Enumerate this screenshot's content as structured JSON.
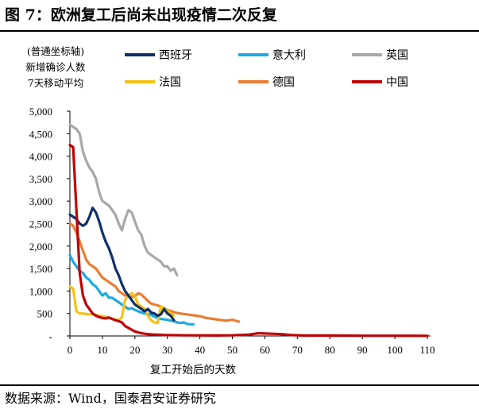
{
  "title": "图 7：欧洲复工后尚未出现疫情二次反复",
  "source": "数据来源：Wind，国泰君安证券研究",
  "chart_data": {
    "type": "line",
    "title": "图 7：欧洲复工后尚未出现疫情二次反复",
    "ylabel_lines": [
      "(普通坐标轴)",
      "新增确诊人数",
      "7天移动平均"
    ],
    "xlabel": "复工开始后的天数",
    "xlim": [
      0,
      110
    ],
    "ylim": [
      0,
      5000
    ],
    "x_ticks": [
      0,
      10,
      20,
      30,
      40,
      50,
      60,
      70,
      80,
      90,
      100,
      110
    ],
    "y_ticks": [
      {
        "value": 5000,
        "label": "5,000"
      },
      {
        "value": 4500,
        "label": "4,500"
      },
      {
        "value": 4000,
        "label": "4,000"
      },
      {
        "value": 3500,
        "label": "3,500"
      },
      {
        "value": 3000,
        "label": "3,000"
      },
      {
        "value": 2500,
        "label": "2,500"
      },
      {
        "value": 2000,
        "label": "2,000"
      },
      {
        "value": 1500,
        "label": "1,500"
      },
      {
        "value": 1000,
        "label": "1,000"
      },
      {
        "value": 500,
        "label": "500"
      },
      {
        "value": 0,
        "label": "-"
      }
    ],
    "legend_position": "top",
    "series": [
      {
        "name": "西班牙",
        "color": "#0f2f6b",
        "points": [
          [
            0,
            2700
          ],
          [
            1,
            2650
          ],
          [
            2,
            2600
          ],
          [
            3,
            2500
          ],
          [
            4,
            2450
          ],
          [
            5,
            2500
          ],
          [
            6,
            2650
          ],
          [
            7,
            2850
          ],
          [
            8,
            2750
          ],
          [
            9,
            2550
          ],
          [
            10,
            2300
          ],
          [
            11,
            2100
          ],
          [
            12,
            1950
          ],
          [
            13,
            1750
          ],
          [
            14,
            1500
          ],
          [
            15,
            1350
          ],
          [
            16,
            1150
          ],
          [
            17,
            1000
          ],
          [
            18,
            900
          ],
          [
            19,
            800
          ],
          [
            20,
            700
          ],
          [
            21,
            650
          ],
          [
            22,
            600
          ],
          [
            23,
            550
          ],
          [
            24,
            600
          ],
          [
            25,
            520
          ],
          [
            26,
            500
          ],
          [
            27,
            450
          ],
          [
            28,
            480
          ],
          [
            29,
            600
          ],
          [
            30,
            500
          ],
          [
            31,
            450
          ],
          [
            32,
            350
          ]
        ]
      },
      {
        "name": "意大利",
        "color": "#1ea9e1",
        "points": [
          [
            0,
            1800
          ],
          [
            1,
            1650
          ],
          [
            2,
            1550
          ],
          [
            3,
            1450
          ],
          [
            4,
            1400
          ],
          [
            5,
            1300
          ],
          [
            6,
            1250
          ],
          [
            7,
            1150
          ],
          [
            8,
            1100
          ],
          [
            9,
            1000
          ],
          [
            10,
            900
          ],
          [
            11,
            950
          ],
          [
            12,
            850
          ],
          [
            13,
            850
          ],
          [
            14,
            800
          ],
          [
            15,
            750
          ],
          [
            16,
            700
          ],
          [
            17,
            650
          ],
          [
            18,
            600
          ],
          [
            19,
            620
          ],
          [
            20,
            580
          ],
          [
            21,
            550
          ],
          [
            22,
            520
          ],
          [
            23,
            500
          ],
          [
            24,
            490
          ],
          [
            25,
            470
          ],
          [
            26,
            430
          ],
          [
            27,
            400
          ],
          [
            28,
            380
          ],
          [
            29,
            370
          ],
          [
            30,
            360
          ],
          [
            31,
            340
          ],
          [
            32,
            330
          ],
          [
            33,
            300
          ],
          [
            34,
            290
          ],
          [
            35,
            300
          ],
          [
            36,
            270
          ],
          [
            37,
            260
          ],
          [
            38,
            260
          ]
        ]
      },
      {
        "name": "英国",
        "color": "#a8a8a8",
        "points": [
          [
            0,
            4700
          ],
          [
            1,
            4650
          ],
          [
            2,
            4600
          ],
          [
            3,
            4500
          ],
          [
            4,
            4100
          ],
          [
            5,
            3900
          ],
          [
            6,
            3750
          ],
          [
            7,
            3650
          ],
          [
            8,
            3500
          ],
          [
            9,
            3200
          ],
          [
            10,
            3000
          ],
          [
            11,
            2950
          ],
          [
            12,
            2900
          ],
          [
            13,
            2800
          ],
          [
            14,
            2700
          ],
          [
            15,
            2500
          ],
          [
            16,
            2350
          ],
          [
            17,
            2600
          ],
          [
            18,
            2800
          ],
          [
            19,
            2750
          ],
          [
            20,
            2550
          ],
          [
            21,
            2350
          ],
          [
            22,
            2250
          ],
          [
            23,
            2000
          ],
          [
            24,
            1850
          ],
          [
            25,
            1800
          ],
          [
            26,
            1750
          ],
          [
            27,
            1700
          ],
          [
            28,
            1650
          ],
          [
            29,
            1550
          ],
          [
            30,
            1550
          ],
          [
            31,
            1450
          ],
          [
            32,
            1500
          ],
          [
            33,
            1350
          ]
        ]
      },
      {
        "name": "法国",
        "color": "#f5c211",
        "points": [
          [
            0,
            1100
          ],
          [
            1,
            1050
          ],
          [
            2,
            550
          ],
          [
            3,
            500
          ],
          [
            4,
            500
          ],
          [
            5,
            490
          ],
          [
            6,
            480
          ],
          [
            7,
            480
          ],
          [
            8,
            470
          ],
          [
            9,
            450
          ],
          [
            10,
            440
          ],
          [
            11,
            430
          ],
          [
            12,
            400
          ],
          [
            13,
            380
          ],
          [
            14,
            360
          ],
          [
            15,
            350
          ],
          [
            16,
            420
          ],
          [
            17,
            800
          ],
          [
            18,
            900
          ],
          [
            19,
            950
          ],
          [
            20,
            880
          ],
          [
            21,
            700
          ],
          [
            22,
            650
          ],
          [
            23,
            600
          ],
          [
            24,
            450
          ],
          [
            25,
            350
          ],
          [
            26,
            300
          ],
          [
            27,
            290
          ],
          [
            28,
            650
          ],
          [
            29,
            600
          ],
          [
            30,
            580
          ],
          [
            31,
            500
          ],
          [
            32,
            450
          ]
        ]
      },
      {
        "name": "德国",
        "color": "#ec7c30",
        "points": [
          [
            0,
            2500
          ],
          [
            1,
            2450
          ],
          [
            2,
            2300
          ],
          [
            3,
            2100
          ],
          [
            4,
            1900
          ],
          [
            5,
            1700
          ],
          [
            6,
            1600
          ],
          [
            7,
            1550
          ],
          [
            8,
            1500
          ],
          [
            9,
            1400
          ],
          [
            10,
            1300
          ],
          [
            11,
            1250
          ],
          [
            12,
            1200
          ],
          [
            13,
            1150
          ],
          [
            14,
            1100
          ],
          [
            15,
            1000
          ],
          [
            16,
            950
          ],
          [
            17,
            900
          ],
          [
            18,
            880
          ],
          [
            19,
            870
          ],
          [
            20,
            890
          ],
          [
            21,
            950
          ],
          [
            22,
            920
          ],
          [
            23,
            850
          ],
          [
            24,
            780
          ],
          [
            25,
            720
          ],
          [
            26,
            700
          ],
          [
            27,
            680
          ],
          [
            28,
            650
          ],
          [
            29,
            620
          ],
          [
            30,
            580
          ],
          [
            31,
            560
          ],
          [
            32,
            530
          ],
          [
            33,
            510
          ],
          [
            34,
            500
          ],
          [
            35,
            490
          ],
          [
            36,
            480
          ],
          [
            37,
            470
          ],
          [
            38,
            460
          ],
          [
            39,
            450
          ],
          [
            40,
            440
          ],
          [
            41,
            420
          ],
          [
            42,
            400
          ],
          [
            43,
            390
          ],
          [
            44,
            380
          ],
          [
            45,
            370
          ],
          [
            46,
            360
          ],
          [
            47,
            350
          ],
          [
            48,
            340
          ],
          [
            49,
            350
          ],
          [
            50,
            360
          ],
          [
            51,
            340
          ],
          [
            52,
            320
          ]
        ]
      },
      {
        "name": "中国",
        "color": "#c00000",
        "points": [
          [
            0,
            4250
          ],
          [
            1,
            4200
          ],
          [
            2,
            2800
          ],
          [
            3,
            1400
          ],
          [
            4,
            900
          ],
          [
            5,
            700
          ],
          [
            6,
            600
          ],
          [
            7,
            500
          ],
          [
            8,
            450
          ],
          [
            9,
            420
          ],
          [
            10,
            400
          ],
          [
            11,
            390
          ],
          [
            12,
            410
          ],
          [
            13,
            380
          ],
          [
            14,
            350
          ],
          [
            15,
            330
          ],
          [
            16,
            300
          ],
          [
            17,
            220
          ],
          [
            18,
            180
          ],
          [
            19,
            140
          ],
          [
            20,
            100
          ],
          [
            21,
            80
          ],
          [
            22,
            60
          ],
          [
            23,
            50
          ],
          [
            24,
            40
          ],
          [
            25,
            35
          ],
          [
            26,
            30
          ],
          [
            27,
            28
          ],
          [
            28,
            25
          ],
          [
            29,
            22
          ],
          [
            30,
            20
          ],
          [
            35,
            15
          ],
          [
            40,
            12
          ],
          [
            45,
            10
          ],
          [
            50,
            15
          ],
          [
            55,
            30
          ],
          [
            58,
            60
          ],
          [
            62,
            50
          ],
          [
            65,
            40
          ],
          [
            68,
            20
          ],
          [
            72,
            10
          ],
          [
            80,
            8
          ],
          [
            90,
            6
          ],
          [
            100,
            5
          ],
          [
            110,
            4
          ]
        ]
      }
    ]
  }
}
